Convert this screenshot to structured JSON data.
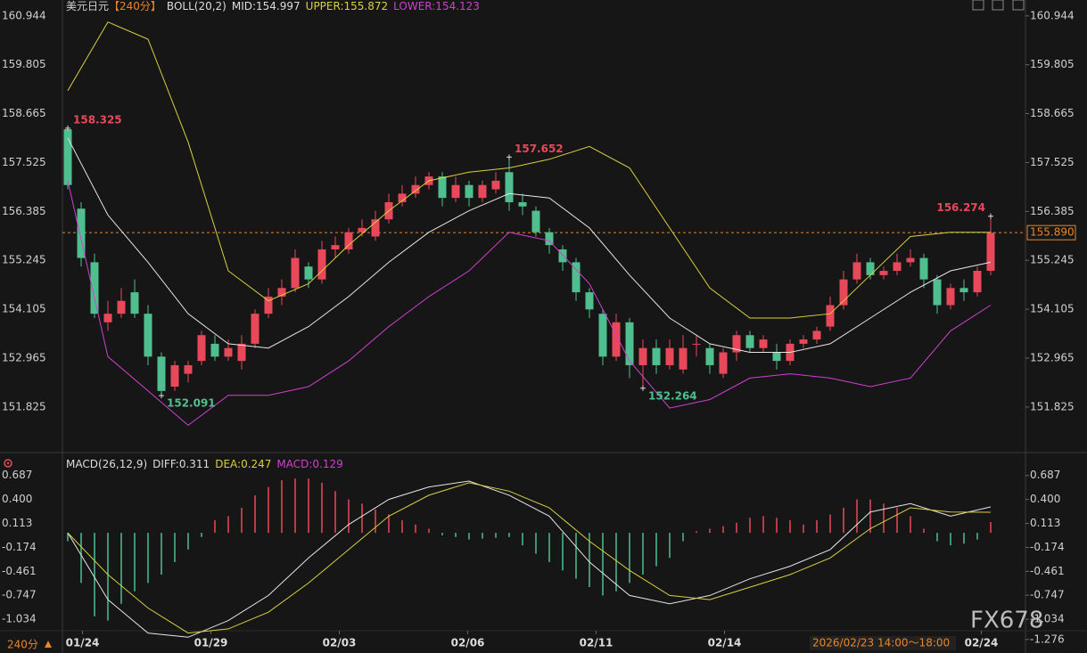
{
  "header": {
    "symbol": "美元日元",
    "period": "【240分】",
    "boll": "BOLL(20,2)",
    "mid": "MID:154.997",
    "upper": "UPPER:155.872",
    "lower": "LOWER:154.123"
  },
  "macd_header": {
    "name": "MACD(26,12,9)",
    "diff": "DIFF:0.311",
    "dea": "DEA:0.247",
    "macd": "MACD:0.129"
  },
  "footer": {
    "period": "240分",
    "cursor_time": "2026/02/23 14:00～18:00",
    "watermark": "FX678"
  },
  "chart_data": [
    {
      "type": "candlestick",
      "up_color": "#e8485a",
      "down_color": "#4fbf8f",
      "xlim": [
        -0.4,
        71.6
      ],
      "xticks": [
        {
          "value": 1.1,
          "label": "01/24"
        },
        {
          "value": 10.7,
          "label": "01/29"
        },
        {
          "value": 20.3,
          "label": "02/03"
        },
        {
          "value": 29.9,
          "label": "02/06"
        },
        {
          "value": 39.5,
          "label": "02/11"
        },
        {
          "value": 49.1,
          "label": "02/14"
        },
        {
          "value": 68.3,
          "label": "02/24"
        }
      ],
      "ylim": [
        150.93,
        161.21
      ],
      "yticks": [
        160.944,
        159.805,
        158.665,
        157.525,
        156.385,
        155.245,
        154.105,
        152.965,
        151.825
      ],
      "open": [
        158.3,
        156.45,
        155.2,
        153.8,
        154.0,
        154.5,
        154.0,
        153.0,
        152.3,
        152.6,
        152.9,
        153.3,
        153.0,
        152.9,
        153.3,
        154.0,
        154.4,
        154.6,
        155.1,
        154.8,
        155.5,
        155.5,
        155.9,
        155.8,
        156.2,
        156.6,
        156.8,
        157.0,
        157.2,
        156.7,
        157.0,
        156.7,
        156.9,
        157.3,
        156.6,
        156.4,
        155.9,
        155.5,
        155.2,
        154.5,
        154.0,
        153.0,
        153.8,
        152.8,
        153.2,
        152.8,
        152.7,
        153.3,
        153.2,
        152.6,
        153.1,
        153.5,
        153.2,
        153.1,
        152.9,
        153.3,
        153.4,
        153.7,
        154.2,
        154.8,
        155.2,
        154.9,
        155.0,
        155.2,
        155.3,
        154.8,
        154.2,
        154.6,
        154.5,
        155.0
      ],
      "high": [
        158.325,
        156.6,
        155.4,
        154.3,
        154.6,
        154.8,
        154.2,
        153.1,
        152.9,
        152.9,
        153.6,
        153.5,
        153.4,
        153.5,
        154.1,
        154.6,
        154.8,
        155.5,
        155.2,
        155.7,
        155.8,
        156.0,
        156.2,
        156.4,
        156.8,
        157.0,
        157.2,
        157.3,
        157.3,
        157.2,
        157.1,
        157.1,
        157.3,
        157.652,
        156.8,
        156.5,
        156.0,
        155.6,
        155.3,
        154.6,
        154.1,
        154.0,
        153.9,
        153.4,
        153.4,
        153.4,
        153.5,
        153.5,
        153.3,
        153.2,
        153.6,
        153.6,
        153.5,
        153.3,
        153.4,
        153.5,
        153.7,
        154.4,
        155.0,
        155.4,
        155.3,
        155.1,
        155.4,
        155.5,
        155.4,
        154.9,
        154.7,
        154.8,
        155.1,
        156.274
      ],
      "low": [
        156.9,
        155.1,
        153.9,
        153.6,
        153.9,
        153.9,
        152.8,
        152.091,
        152.2,
        152.4,
        152.8,
        152.9,
        152.9,
        152.7,
        153.2,
        153.9,
        154.2,
        154.5,
        154.6,
        154.7,
        155.3,
        155.4,
        155.8,
        155.7,
        156.1,
        156.5,
        156.7,
        156.9,
        156.5,
        156.6,
        156.5,
        156.6,
        156.8,
        156.4,
        156.3,
        155.8,
        155.4,
        155.0,
        154.3,
        153.9,
        152.8,
        152.9,
        152.5,
        152.264,
        152.6,
        152.7,
        152.6,
        153.0,
        152.6,
        152.5,
        152.9,
        153.1,
        153.1,
        152.7,
        152.8,
        153.2,
        153.3,
        153.6,
        154.1,
        154.7,
        154.8,
        154.8,
        154.9,
        155.1,
        154.6,
        154.0,
        154.1,
        154.3,
        154.4,
        154.9
      ],
      "close": [
        157.0,
        155.3,
        154.0,
        154.0,
        154.3,
        154.0,
        153.0,
        152.2,
        152.8,
        152.8,
        153.5,
        153.0,
        153.2,
        153.3,
        154.0,
        154.4,
        154.6,
        155.3,
        154.8,
        155.5,
        155.6,
        155.9,
        156.0,
        156.2,
        156.6,
        156.8,
        157.0,
        157.2,
        156.7,
        157.0,
        156.7,
        157.0,
        157.1,
        156.6,
        156.5,
        155.9,
        155.6,
        155.2,
        154.5,
        154.1,
        153.0,
        153.8,
        152.8,
        153.2,
        152.8,
        153.2,
        153.2,
        153.3,
        152.8,
        153.1,
        153.5,
        153.2,
        153.4,
        152.9,
        153.3,
        153.4,
        153.6,
        154.2,
        154.8,
        155.2,
        154.9,
        155.0,
        155.2,
        155.3,
        154.8,
        154.2,
        154.6,
        154.5,
        155.0,
        155.89
      ],
      "marked_highs": [
        0,
        33,
        69
      ],
      "marked_lows": [
        7,
        43
      ],
      "marker_high_color": "#e8485a",
      "marker_low_color": "#4fbf8f",
      "last_price": {
        "value": 155.89,
        "label": "155.890"
      },
      "last_price_color": "#e8862c",
      "series": [
        {
          "color": "#d8d040",
          "x": [
            0,
            3,
            6,
            9,
            12,
            15,
            18,
            21,
            24,
            27,
            30,
            33,
            36,
            39,
            42,
            45,
            48,
            51,
            54,
            57,
            60,
            63,
            66,
            69
          ],
          "values": [
            159.2,
            160.8,
            160.4,
            158.0,
            155.0,
            154.3,
            154.7,
            155.6,
            156.4,
            157.1,
            157.3,
            157.4,
            157.6,
            157.9,
            157.4,
            156.0,
            154.6,
            153.9,
            153.9,
            154.0,
            154.9,
            155.8,
            155.9,
            155.9
          ]
        },
        {
          "color": "#e6e6e6",
          "x": [
            0,
            3,
            6,
            9,
            12,
            15,
            18,
            21,
            24,
            27,
            30,
            33,
            36,
            39,
            42,
            45,
            48,
            51,
            54,
            57,
            60,
            63,
            66,
            69
          ],
          "values": [
            158.1,
            156.3,
            155.2,
            154.0,
            153.3,
            153.2,
            153.7,
            154.4,
            155.2,
            155.9,
            156.4,
            156.8,
            156.7,
            156.0,
            154.9,
            153.9,
            153.3,
            153.1,
            153.1,
            153.3,
            153.9,
            154.5,
            155.0,
            155.2
          ]
        },
        {
          "color": "#d040d0",
          "x": [
            0,
            3,
            6,
            9,
            12,
            15,
            18,
            21,
            24,
            27,
            30,
            33,
            36,
            39,
            42,
            45,
            48,
            51,
            54,
            57,
            60,
            63,
            66,
            69
          ],
          "values": [
            157.1,
            153.0,
            152.2,
            151.4,
            152.1,
            152.1,
            152.3,
            152.9,
            153.7,
            154.4,
            155.0,
            155.9,
            155.7,
            154.7,
            152.9,
            151.8,
            152.0,
            152.5,
            152.6,
            152.5,
            152.3,
            152.5,
            153.6,
            154.2
          ]
        }
      ]
    },
    {
      "type": "macd",
      "pos_color": "#e8485a",
      "neg_color": "#4fbf8f",
      "xlim": [
        -0.4,
        71.6
      ],
      "ylim": [
        -1.3,
        0.78
      ],
      "yticks": [
        0.687,
        {
          "value": 0.4,
          "label": "0.400"
        },
        0.113,
        -0.174,
        -0.461,
        -0.747,
        -1.034
      ],
      "extra_ticks": [
        -1.276
      ],
      "values": [
        -0.1,
        -0.6,
        -1.0,
        -1.05,
        -0.85,
        -0.7,
        -0.6,
        -0.5,
        -0.35,
        -0.2,
        -0.05,
        0.15,
        0.2,
        0.3,
        0.45,
        0.55,
        0.63,
        0.65,
        0.65,
        0.6,
        0.5,
        0.4,
        0.35,
        0.28,
        0.22,
        0.15,
        0.1,
        0.05,
        -0.03,
        -0.05,
        -0.08,
        -0.07,
        -0.06,
        -0.05,
        -0.15,
        -0.25,
        -0.35,
        -0.45,
        -0.55,
        -0.65,
        -0.75,
        -0.7,
        -0.6,
        -0.5,
        -0.4,
        -0.3,
        -0.1,
        0.02,
        0.05,
        0.08,
        0.12,
        0.18,
        0.2,
        0.18,
        0.15,
        0.1,
        0.15,
        0.22,
        0.3,
        0.4,
        0.4,
        0.35,
        0.3,
        0.2,
        0.05,
        -0.1,
        -0.15,
        -0.13,
        -0.08,
        0.129
      ],
      "series": [
        {
          "color": "#e6e6e6",
          "x": [
            0,
            3,
            6,
            9,
            12,
            15,
            18,
            21,
            24,
            27,
            30,
            33,
            36,
            39,
            42,
            45,
            48,
            51,
            54,
            57,
            60,
            63,
            66,
            69
          ],
          "values": [
            0.0,
            -0.8,
            -1.2,
            -1.25,
            -1.05,
            -0.75,
            -0.3,
            0.1,
            0.4,
            0.55,
            0.62,
            0.45,
            0.2,
            -0.35,
            -0.75,
            -0.85,
            -0.75,
            -0.55,
            -0.4,
            -0.2,
            0.25,
            0.35,
            0.2,
            0.311
          ]
        },
        {
          "color": "#d8d040",
          "x": [
            0,
            3,
            6,
            9,
            12,
            15,
            18,
            21,
            24,
            27,
            30,
            33,
            36,
            39,
            42,
            45,
            48,
            51,
            54,
            57,
            60,
            63,
            66,
            69
          ],
          "values": [
            0.0,
            -0.5,
            -0.9,
            -1.2,
            -1.15,
            -0.95,
            -0.6,
            -0.2,
            0.2,
            0.45,
            0.6,
            0.5,
            0.3,
            -0.1,
            -0.45,
            -0.75,
            -0.8,
            -0.65,
            -0.5,
            -0.3,
            0.05,
            0.3,
            0.25,
            0.247
          ]
        }
      ]
    }
  ]
}
